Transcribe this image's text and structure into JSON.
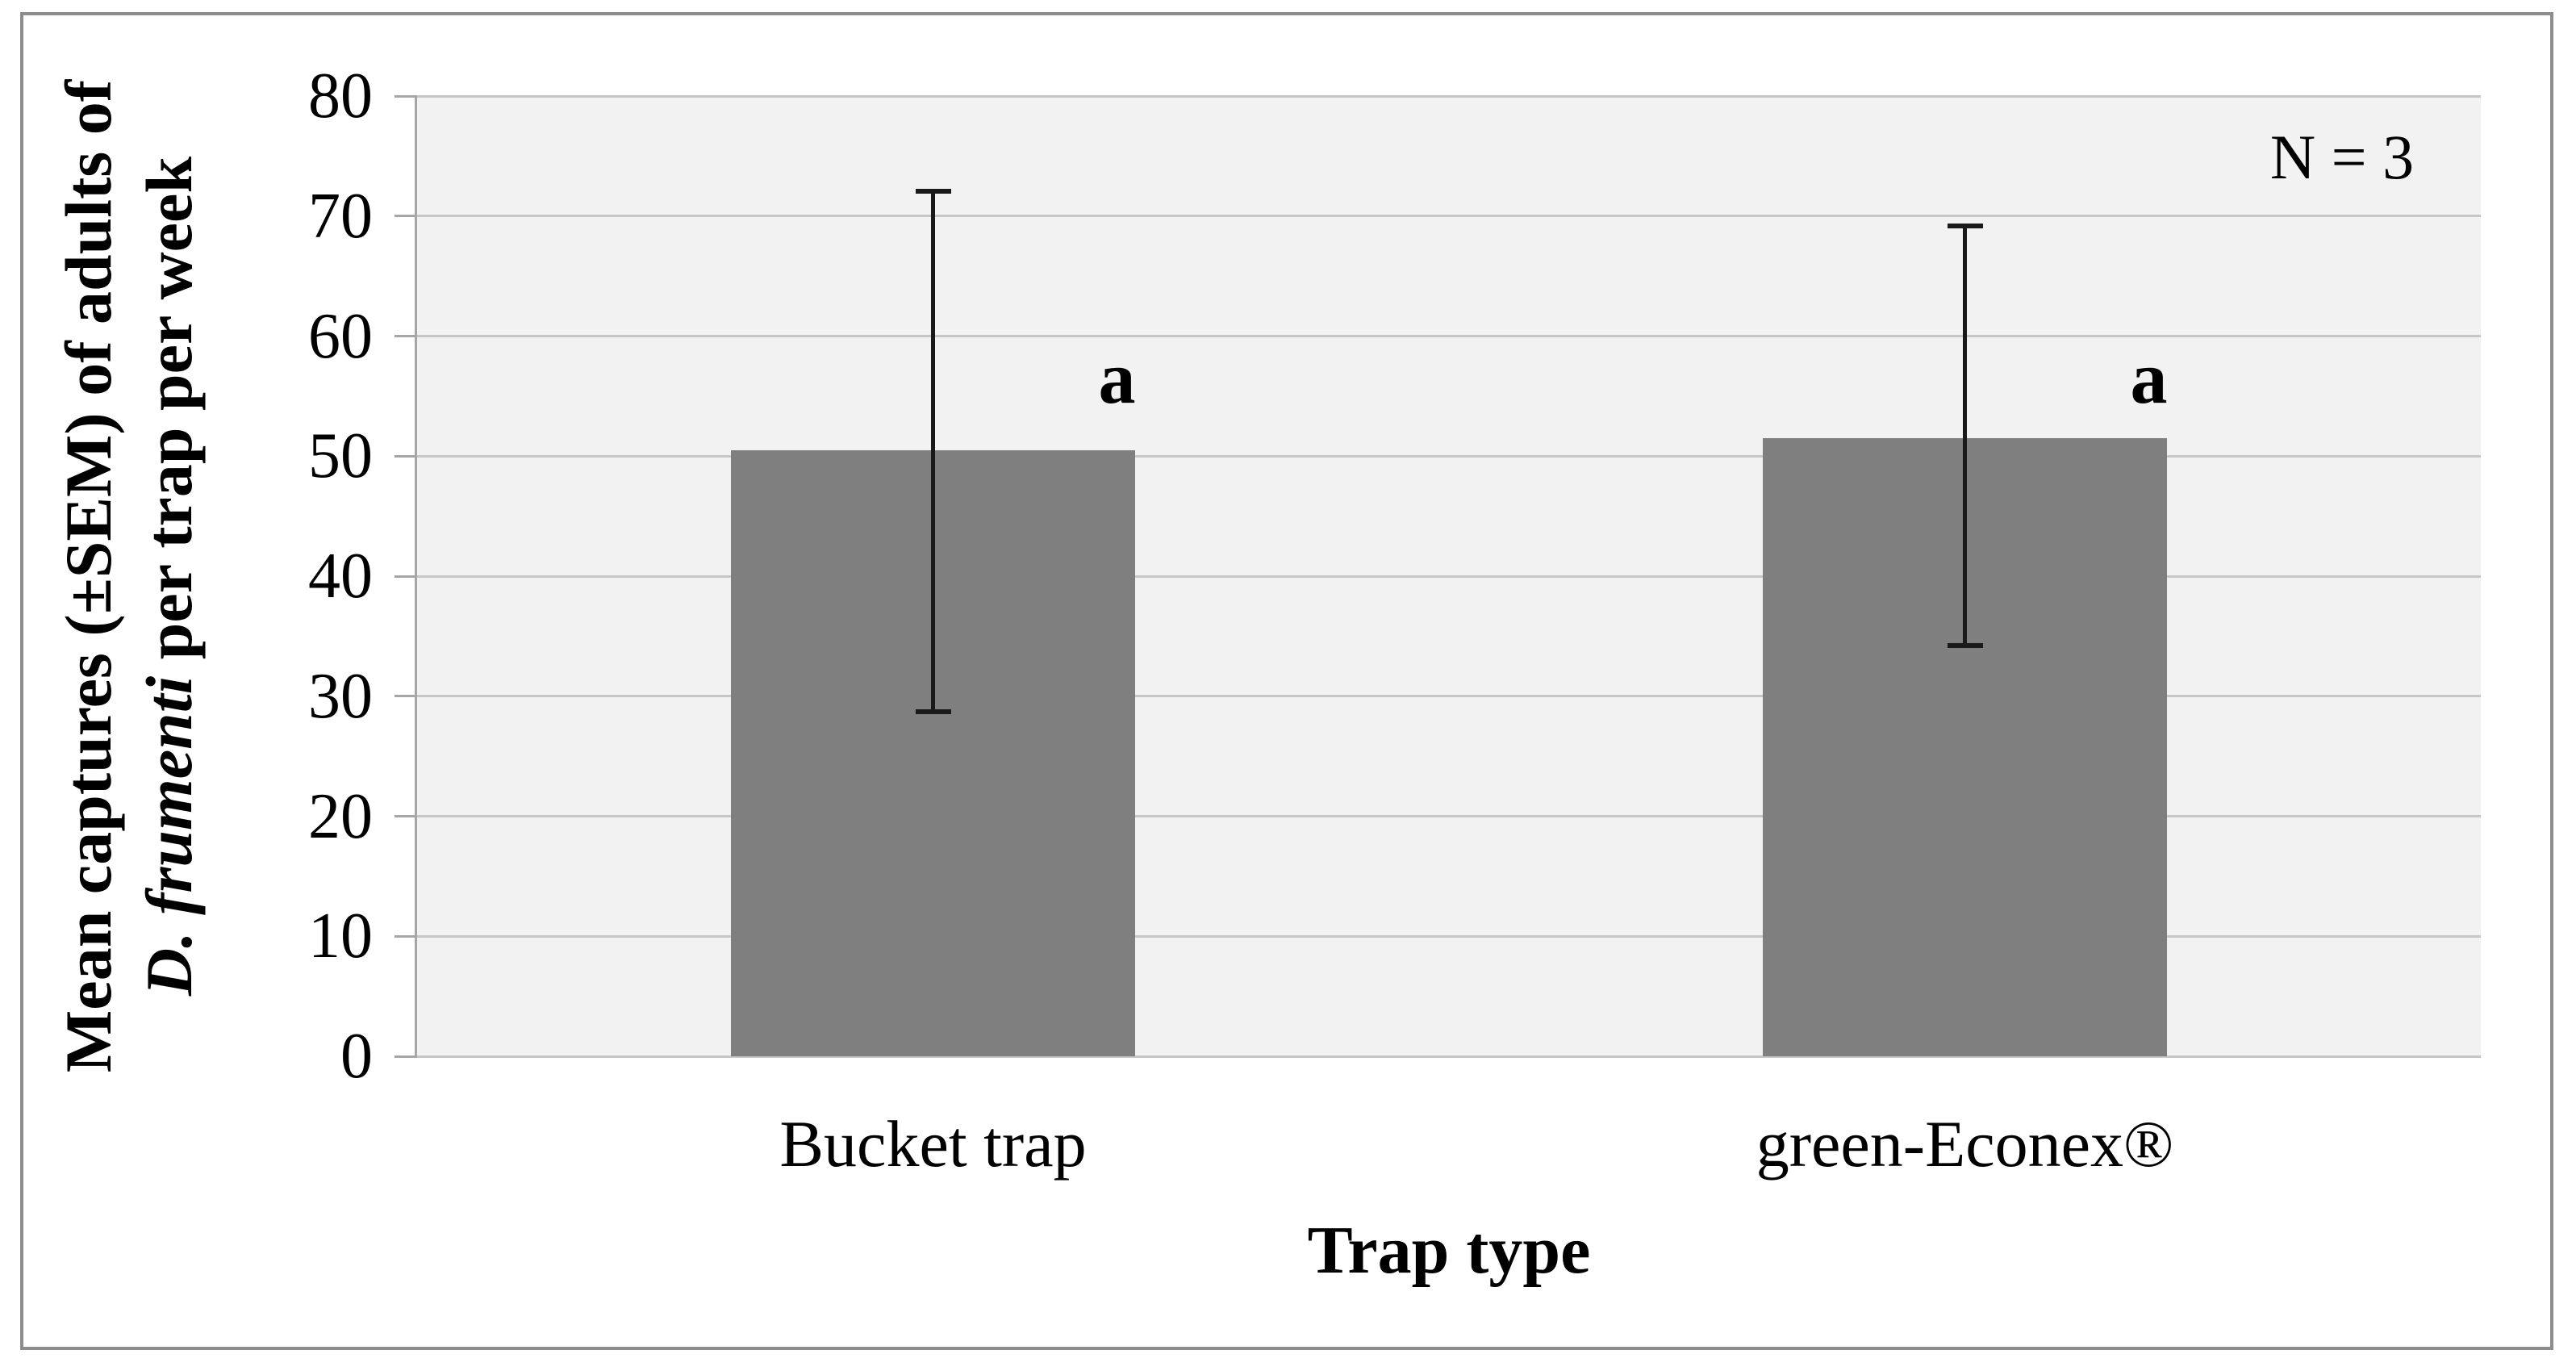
{
  "chart_data": {
    "type": "bar",
    "title": "",
    "categories": [
      "Bucket trap",
      "green-Econex®"
    ],
    "values": [
      50.5,
      51.5
    ],
    "error_bars": {
      "upper": [
        72.1,
        69.2
      ],
      "lower": [
        28.7,
        34.2
      ]
    },
    "significance_labels": [
      "a",
      "a"
    ],
    "annotation": "N = 3",
    "xlabel": "Trap type",
    "ylabel": {
      "line1": "Mean captures (±SEM) of adults of",
      "line2_italic": "D. frumenti",
      "line2_rest": " per trap per week"
    },
    "ylim": [
      0,
      80
    ],
    "yticks": [
      0,
      10,
      20,
      30,
      40,
      50,
      60,
      70,
      80
    ],
    "grid": true,
    "legend": false,
    "colors": {
      "bar_fill": "#7f7f7f",
      "plot_bg": "#f2f2f2",
      "gridline": "#c6c6c6",
      "axis_line": "#a6a6a6",
      "figure_border": "#8c8c8c",
      "error_bar": "#1a1a1a",
      "text": "#000000"
    }
  }
}
